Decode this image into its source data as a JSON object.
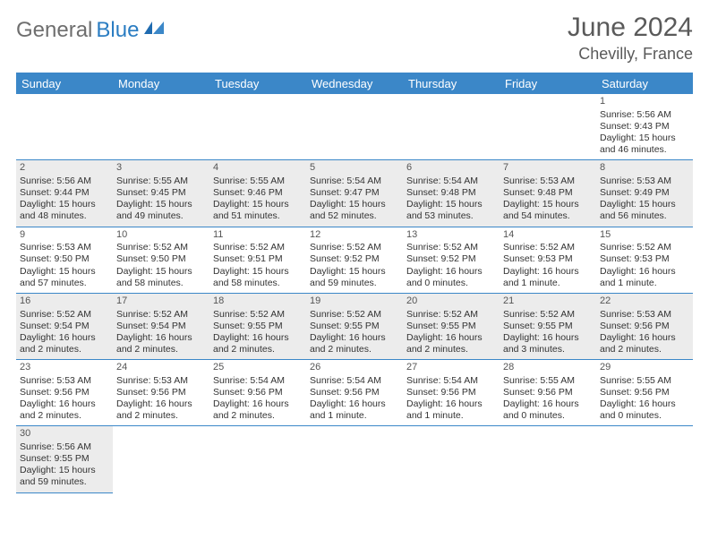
{
  "logo": {
    "gray": "General",
    "blue": "Blue"
  },
  "title": "June 2024",
  "location": "Chevilly, France",
  "colors": {
    "header_bg": "#3b87c8",
    "header_text": "#ffffff",
    "shade": "#ececec",
    "border": "#3b87c8",
    "title_color": "#5a5a5a"
  },
  "day_headers": [
    "Sunday",
    "Monday",
    "Tuesday",
    "Wednesday",
    "Thursday",
    "Friday",
    "Saturday"
  ],
  "weeks": [
    [
      {
        "empty": true
      },
      {
        "empty": true
      },
      {
        "empty": true
      },
      {
        "empty": true
      },
      {
        "empty": true
      },
      {
        "empty": true
      },
      {
        "n": "1",
        "sr": "5:56 AM",
        "ss": "9:43 PM",
        "dl": "15 hours and 46 minutes."
      }
    ],
    [
      {
        "n": "2",
        "sr": "5:56 AM",
        "ss": "9:44 PM",
        "dl": "15 hours and 48 minutes."
      },
      {
        "n": "3",
        "sr": "5:55 AM",
        "ss": "9:45 PM",
        "dl": "15 hours and 49 minutes."
      },
      {
        "n": "4",
        "sr": "5:55 AM",
        "ss": "9:46 PM",
        "dl": "15 hours and 51 minutes."
      },
      {
        "n": "5",
        "sr": "5:54 AM",
        "ss": "9:47 PM",
        "dl": "15 hours and 52 minutes."
      },
      {
        "n": "6",
        "sr": "5:54 AM",
        "ss": "9:48 PM",
        "dl": "15 hours and 53 minutes."
      },
      {
        "n": "7",
        "sr": "5:53 AM",
        "ss": "9:48 PM",
        "dl": "15 hours and 54 minutes."
      },
      {
        "n": "8",
        "sr": "5:53 AM",
        "ss": "9:49 PM",
        "dl": "15 hours and 56 minutes."
      }
    ],
    [
      {
        "n": "9",
        "sr": "5:53 AM",
        "ss": "9:50 PM",
        "dl": "15 hours and 57 minutes."
      },
      {
        "n": "10",
        "sr": "5:52 AM",
        "ss": "9:50 PM",
        "dl": "15 hours and 58 minutes."
      },
      {
        "n": "11",
        "sr": "5:52 AM",
        "ss": "9:51 PM",
        "dl": "15 hours and 58 minutes."
      },
      {
        "n": "12",
        "sr": "5:52 AM",
        "ss": "9:52 PM",
        "dl": "15 hours and 59 minutes."
      },
      {
        "n": "13",
        "sr": "5:52 AM",
        "ss": "9:52 PM",
        "dl": "16 hours and 0 minutes."
      },
      {
        "n": "14",
        "sr": "5:52 AM",
        "ss": "9:53 PM",
        "dl": "16 hours and 1 minute."
      },
      {
        "n": "15",
        "sr": "5:52 AM",
        "ss": "9:53 PM",
        "dl": "16 hours and 1 minute."
      }
    ],
    [
      {
        "n": "16",
        "sr": "5:52 AM",
        "ss": "9:54 PM",
        "dl": "16 hours and 2 minutes."
      },
      {
        "n": "17",
        "sr": "5:52 AM",
        "ss": "9:54 PM",
        "dl": "16 hours and 2 minutes."
      },
      {
        "n": "18",
        "sr": "5:52 AM",
        "ss": "9:55 PM",
        "dl": "16 hours and 2 minutes."
      },
      {
        "n": "19",
        "sr": "5:52 AM",
        "ss": "9:55 PM",
        "dl": "16 hours and 2 minutes."
      },
      {
        "n": "20",
        "sr": "5:52 AM",
        "ss": "9:55 PM",
        "dl": "16 hours and 2 minutes."
      },
      {
        "n": "21",
        "sr": "5:52 AM",
        "ss": "9:55 PM",
        "dl": "16 hours and 3 minutes."
      },
      {
        "n": "22",
        "sr": "5:53 AM",
        "ss": "9:56 PM",
        "dl": "16 hours and 2 minutes."
      }
    ],
    [
      {
        "n": "23",
        "sr": "5:53 AM",
        "ss": "9:56 PM",
        "dl": "16 hours and 2 minutes."
      },
      {
        "n": "24",
        "sr": "5:53 AM",
        "ss": "9:56 PM",
        "dl": "16 hours and 2 minutes."
      },
      {
        "n": "25",
        "sr": "5:54 AM",
        "ss": "9:56 PM",
        "dl": "16 hours and 2 minutes."
      },
      {
        "n": "26",
        "sr": "5:54 AM",
        "ss": "9:56 PM",
        "dl": "16 hours and 1 minute."
      },
      {
        "n": "27",
        "sr": "5:54 AM",
        "ss": "9:56 PM",
        "dl": "16 hours and 1 minute."
      },
      {
        "n": "28",
        "sr": "5:55 AM",
        "ss": "9:56 PM",
        "dl": "16 hours and 0 minutes."
      },
      {
        "n": "29",
        "sr": "5:55 AM",
        "ss": "9:56 PM",
        "dl": "16 hours and 0 minutes."
      }
    ],
    [
      {
        "n": "30",
        "sr": "5:56 AM",
        "ss": "9:55 PM",
        "dl": "15 hours and 59 minutes."
      },
      {
        "empty": true,
        "noborder": true
      },
      {
        "empty": true,
        "noborder": true
      },
      {
        "empty": true,
        "noborder": true
      },
      {
        "empty": true,
        "noborder": true
      },
      {
        "empty": true,
        "noborder": true
      },
      {
        "empty": true,
        "noborder": true
      }
    ]
  ]
}
